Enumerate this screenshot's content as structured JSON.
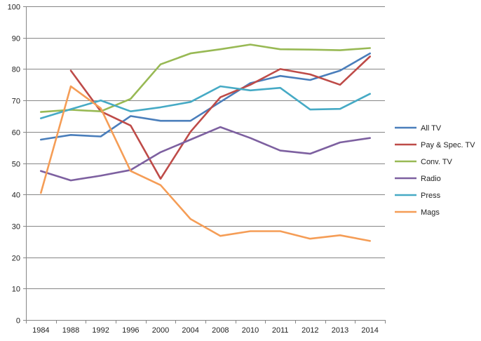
{
  "chart_data": {
    "type": "line",
    "title": "",
    "xlabel": "",
    "ylabel": "",
    "categories": [
      "1984",
      "1988",
      "1992",
      "1996",
      "2000",
      "2004",
      "2008",
      "2010",
      "2011",
      "2012",
      "2013",
      "2014"
    ],
    "ylim": [
      0,
      100
    ],
    "yticks": [
      0,
      10,
      20,
      30,
      40,
      50,
      60,
      70,
      80,
      90,
      100
    ],
    "grid": "horizontal",
    "legend_position": "right",
    "series": [
      {
        "name": "All TV",
        "color": "#4A7EBB",
        "values": [
          57.5,
          59,
          58.5,
          65,
          63.5,
          63.5,
          69.5,
          75.5,
          77.8,
          76.5,
          79.5,
          85
        ]
      },
      {
        "name": "Pay & Spec. TV",
        "color": "#BE4B48",
        "values": [
          null,
          79.5,
          66.5,
          62,
          45,
          60,
          71,
          75,
          80,
          78.3,
          75,
          84
        ]
      },
      {
        "name": "Conv. TV",
        "color": "#98B954",
        "values": [
          66.3,
          67,
          66.5,
          70.5,
          81.5,
          85,
          86.3,
          87.8,
          86.3,
          86.2,
          86,
          86.7
        ]
      },
      {
        "name": "Radio",
        "color": "#7D60A0",
        "values": [
          47.5,
          44.5,
          46,
          47.8,
          53.5,
          57.5,
          61.5,
          58,
          54,
          53,
          56.6,
          58
        ]
      },
      {
        "name": "Press",
        "color": "#46AAC5",
        "values": [
          64.3,
          67.2,
          70,
          66.5,
          67.8,
          69.5,
          74.5,
          73.2,
          74,
          67.1,
          67.3,
          72.1
        ]
      },
      {
        "name": "Mags",
        "color": "#F59D56",
        "values": [
          40.5,
          74.5,
          67.5,
          47.5,
          43,
          32.2,
          26.8,
          28.3,
          28.3,
          25.9,
          27,
          25.2
        ]
      }
    ]
  }
}
